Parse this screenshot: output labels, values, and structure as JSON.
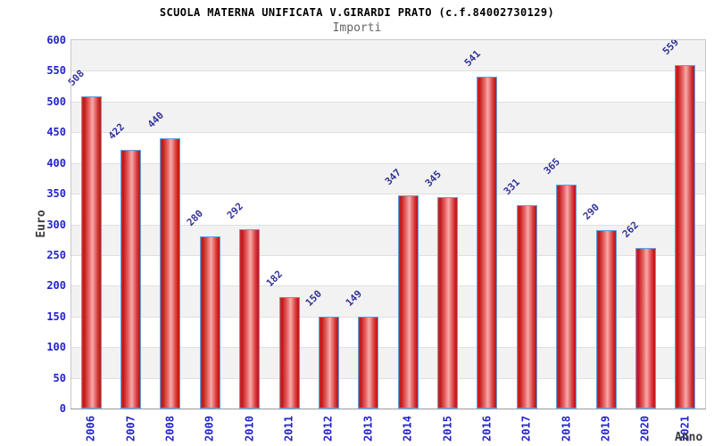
{
  "chart_data": {
    "type": "bar",
    "title": "SCUOLA MATERNA UNIFICATA V.GIRARDI PRATO (c.f.84002730129)",
    "subtitle": "Importi",
    "xlabel": "Anno",
    "ylabel": "Euro",
    "categories": [
      "2006",
      "2007",
      "2008",
      "2009",
      "2010",
      "2011",
      "2012",
      "2013",
      "2014",
      "2015",
      "2016",
      "2017",
      "2018",
      "2019",
      "2020",
      "2021"
    ],
    "values": [
      508,
      422,
      440,
      280,
      292,
      182,
      150,
      149,
      347,
      345,
      541,
      331,
      365,
      290,
      262,
      559
    ],
    "ylim": [
      0,
      600
    ],
    "ytick_step": 50,
    "grid": "horizontal-bands",
    "legend": "none",
    "value_labels_rotation_deg": -45,
    "xtick_rotation_deg": -90,
    "colors": {
      "bar_fill_center": "#f7aaaa",
      "bar_fill_edge": "#c01616",
      "bar_border": "#5f9fe0",
      "tick_label": "#2323cc",
      "value_label": "#333399",
      "axis_title": "#3a3a3a",
      "subtitle": "#666666",
      "band_gray": "#f2f2f2",
      "band_white": "#ffffff",
      "gridline": "#e0e0e0",
      "plot_border": "#c8c8c8"
    }
  }
}
